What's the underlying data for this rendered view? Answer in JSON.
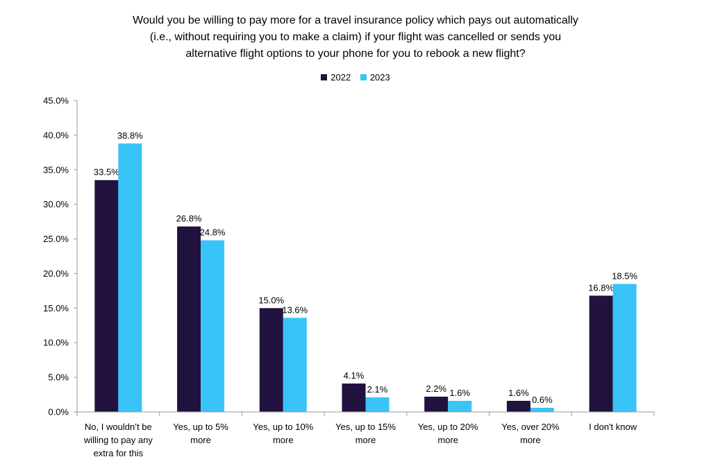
{
  "chart_data": {
    "type": "bar",
    "title_lines": [
      "Would you be willing to pay more for a travel insurance policy which pays out automatically",
      "(i.e., without requiring you to make a claim) if your flight was cancelled or sends you",
      "alternative flight options to your phone for you to rebook a new flight?"
    ],
    "categories": [
      [
        "No, I wouldn’t be",
        "willing to pay any",
        "extra for this"
      ],
      [
        "Yes, up to 5%",
        "more"
      ],
      [
        "Yes, up to 10%",
        "more"
      ],
      [
        "Yes, up to 15%",
        "more"
      ],
      [
        "Yes, up to 20%",
        "more"
      ],
      [
        "Yes, over 20%",
        "more"
      ],
      [
        "I don't know"
      ]
    ],
    "series": [
      {
        "name": "2022",
        "color": "#21123f",
        "values": [
          33.5,
          26.8,
          15.0,
          4.1,
          2.2,
          1.6,
          16.8
        ],
        "labels": [
          "33.5%",
          "26.8%",
          "15.0%",
          "4.1%",
          "2.2%",
          "1.6%",
          "16.8%"
        ]
      },
      {
        "name": "2023",
        "color": "#38c4f7",
        "values": [
          38.8,
          24.8,
          13.6,
          2.1,
          1.6,
          0.6,
          18.5
        ],
        "labels": [
          "38.8%",
          "24.8%",
          "13.6%",
          "2.1%",
          "1.6%",
          "0.6%",
          "18.5%"
        ]
      }
    ],
    "yticks": [
      "0.0%",
      "5.0%",
      "10.0%",
      "15.0%",
      "20.0%",
      "25.0%",
      "30.0%",
      "35.0%",
      "40.0%",
      "45.0%"
    ],
    "ylim": [
      0,
      45
    ],
    "grid": false,
    "legend_position": "top-center"
  }
}
